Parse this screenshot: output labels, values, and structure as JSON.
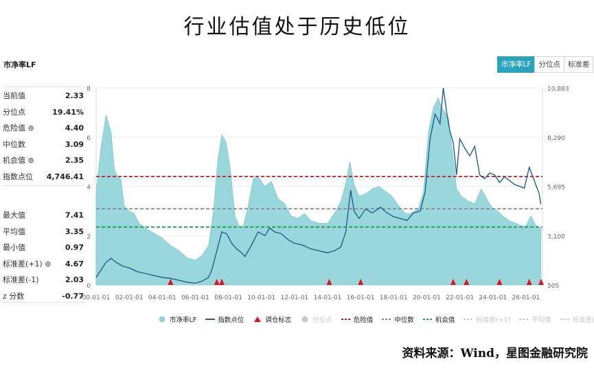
{
  "title": "行业估值处于历史低位",
  "metric_label": "市净率LF",
  "tabs": [
    {
      "label": "市净率LF",
      "active": true
    },
    {
      "label": "分位点",
      "active": false
    },
    {
      "label": "标准差",
      "active": false
    }
  ],
  "stats_top": [
    {
      "label": "当前值",
      "value": "2.33"
    },
    {
      "label": "分位点",
      "value": "19.41%"
    },
    {
      "label": "危险值 ⊚",
      "value": "4.40"
    },
    {
      "label": "中位数",
      "value": "3.09"
    },
    {
      "label": "机会值 ⊚",
      "value": "2.35"
    },
    {
      "label": "指数点位",
      "value": "4,746.41"
    }
  ],
  "stats_bottom": [
    {
      "label": "最大值",
      "value": "7.41"
    },
    {
      "label": "平均值",
      "value": "3.35"
    },
    {
      "label": "最小值",
      "value": "0.97"
    },
    {
      "label": "标准差(+1) ⊚",
      "value": "4.67"
    },
    {
      "label": "标准差(-1)",
      "value": "2.03"
    },
    {
      "label": "z 分数",
      "value": "-0.77"
    }
  ],
  "legend": [
    {
      "label": "市净率LF",
      "kind": "dot",
      "color": "#8fd3d9",
      "active": true
    },
    {
      "label": "指数点位",
      "kind": "line",
      "color": "#1f5f8b",
      "active": true
    },
    {
      "label": "调仓标志",
      "kind": "triangle",
      "color": "#e0141e",
      "active": true
    },
    {
      "label": "分位点",
      "kind": "dot",
      "color": "#c8c8c8",
      "active": false
    },
    {
      "label": "危险值",
      "kind": "dash",
      "color": "#c8161e",
      "active": true
    },
    {
      "label": "中位数",
      "kind": "dash",
      "color": "#888888",
      "active": true
    },
    {
      "label": "机会值",
      "kind": "dash",
      "color": "#1e9e4c",
      "active": true
    },
    {
      "label": "标准差(+1)",
      "kind": "dash",
      "color": "#cccccc",
      "active": false
    },
    {
      "label": "平均值",
      "kind": "dash",
      "color": "#cccccc",
      "active": false
    },
    {
      "label": "标准差(-1)",
      "kind": "dash",
      "color": "#cccccc",
      "active": false
    }
  ],
  "source": "资料来源：Wind，星图金融研究院",
  "chart_data": {
    "type": "area",
    "x_ticks": [
      "00-01-01",
      "02-01-01",
      "04-01-01",
      "06-01-01",
      "08-01-01",
      "10-01-01",
      "12-01-01",
      "14-01-01",
      "16-01-01",
      "18-01-01",
      "20-01-01",
      "22-01-01",
      "24-01-01",
      "26-01-01"
    ],
    "y_left": {
      "range": [
        0,
        8
      ],
      "ticks": [
        "0",
        "2",
        "4",
        "6",
        "8"
      ]
    },
    "y_right": {
      "range": [
        505,
        10883
      ],
      "ticks": [
        "505",
        "3,100",
        "5,695",
        "8,290",
        "10,883"
      ]
    },
    "pb_series": {
      "name": "市净率LF",
      "x": [
        2000.0,
        2000.3,
        2000.6,
        2000.9,
        2001.1,
        2001.3,
        2001.5,
        2001.7,
        2002.0,
        2002.3,
        2002.6,
        2003.0,
        2003.5,
        2004.0,
        2004.5,
        2005.0,
        2005.5,
        2006.0,
        2006.4,
        2006.8,
        2007.1,
        2007.35,
        2007.6,
        2007.85,
        2008.1,
        2008.4,
        2008.7,
        2008.9,
        2009.2,
        2009.5,
        2009.8,
        2010.2,
        2010.6,
        2011.0,
        2011.4,
        2011.8,
        2012.2,
        2012.6,
        2013.0,
        2013.5,
        2014.0,
        2014.5,
        2014.8,
        2015.1,
        2015.35,
        2015.6,
        2015.9,
        2016.3,
        2016.7,
        2017.1,
        2017.5,
        2017.9,
        2018.3,
        2018.7,
        2019.0,
        2019.5,
        2019.8,
        2020.1,
        2020.4,
        2020.7,
        2020.9,
        2021.1,
        2021.3,
        2021.5,
        2021.8,
        2022.1,
        2022.5,
        2022.9,
        2023.3,
        2023.7,
        2024.0,
        2024.3,
        2024.6,
        2025.0,
        2025.4,
        2025.7,
        2026.0,
        2026.3,
        2026.6,
        2026.9
      ],
      "y": [
        3.8,
        5.6,
        6.9,
        6.2,
        4.7,
        4.4,
        4.3,
        3.2,
        3.0,
        2.9,
        2.5,
        2.3,
        2.1,
        1.9,
        1.6,
        1.4,
        1.1,
        1.0,
        1.2,
        1.6,
        3.0,
        5.0,
        6.1,
        5.8,
        4.8,
        2.8,
        2.3,
        2.4,
        3.2,
        4.3,
        4.4,
        4.0,
        4.2,
        3.5,
        3.3,
        2.8,
        2.7,
        2.9,
        2.6,
        2.5,
        2.5,
        3.0,
        3.4,
        4.1,
        5.0,
        4.1,
        3.6,
        3.7,
        3.9,
        4.0,
        3.8,
        3.6,
        3.2,
        2.9,
        2.9,
        3.1,
        3.8,
        6.2,
        7.2,
        7.6,
        7.2,
        7.0,
        6.8,
        5.7,
        3.9,
        3.6,
        3.4,
        3.3,
        3.9,
        3.4,
        3.1,
        3.0,
        2.8,
        2.6,
        2.5,
        2.4,
        2.4,
        2.8,
        2.4,
        2.3
      ]
    },
    "index_series": {
      "name": "指数点位",
      "x": [
        2000.0,
        2000.3,
        2000.6,
        2000.9,
        2001.2,
        2001.6,
        2002.0,
        2002.5,
        2003.0,
        2003.5,
        2004.0,
        2004.5,
        2005.0,
        2005.5,
        2006.0,
        2006.4,
        2006.8,
        2007.0,
        2007.3,
        2007.6,
        2007.9,
        2008.2,
        2008.5,
        2008.8,
        2009.0,
        2009.4,
        2009.8,
        2010.2,
        2010.5,
        2010.8,
        2011.2,
        2011.6,
        2012.0,
        2012.5,
        2013.0,
        2013.5,
        2014.0,
        2014.4,
        2014.8,
        2015.1,
        2015.4,
        2015.6,
        2015.9,
        2016.3,
        2016.7,
        2017.2,
        2017.6,
        2018.0,
        2018.4,
        2018.8,
        2019.2,
        2019.6,
        2019.9,
        2020.2,
        2020.5,
        2020.8,
        2021.0,
        2021.2,
        2021.4,
        2021.6,
        2021.8,
        2022.0,
        2022.3,
        2022.6,
        2022.9,
        2023.2,
        2023.5,
        2023.8,
        2024.1,
        2024.4,
        2024.7,
        2025.0,
        2025.3,
        2025.6,
        2025.9,
        2026.2,
        2026.5,
        2026.8,
        2026.9
      ],
      "y": [
        900,
        1300,
        1700,
        1900,
        1700,
        1500,
        1400,
        1200,
        1100,
        1000,
        900,
        850,
        750,
        650,
        600,
        700,
        900,
        1300,
        2300,
        3300,
        3200,
        2700,
        2400,
        2200,
        2000,
        2600,
        3300,
        3100,
        3500,
        3300,
        3200,
        2900,
        2700,
        2600,
        2400,
        2300,
        2200,
        2300,
        2500,
        3300,
        5500,
        4400,
        4000,
        4500,
        4300,
        4600,
        4300,
        4100,
        4000,
        3900,
        4300,
        4400,
        5400,
        8200,
        9500,
        9000,
        10883,
        9600,
        8600,
        8000,
        6300,
        8200,
        7700,
        7300,
        7800,
        6300,
        6100,
        6400,
        6300,
        5900,
        6200,
        6000,
        5800,
        5700,
        5600,
        6700,
        6000,
        5300,
        4746
      ]
    },
    "reference_lines": {
      "危险值": 4.4,
      "中位数": 3.09,
      "机会值": 2.35
    },
    "rebalance_markers_x": [
      2004.5,
      2007.3,
      2007.6,
      2014.1,
      2016.0,
      2021.6,
      2022.4,
      2024.4,
      2026.2,
      2027.0
    ]
  }
}
